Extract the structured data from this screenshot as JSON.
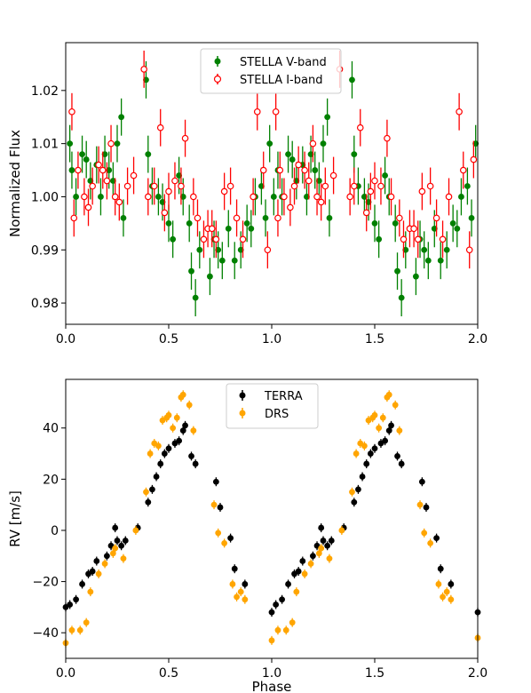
{
  "chart_data": [
    {
      "type": "scatter",
      "xlabel": "",
      "ylabel": "Normalized Flux",
      "xlim": [
        0.0,
        2.0
      ],
      "ylim": [
        0.976,
        1.029
      ],
      "xticks": [
        0.0,
        0.5,
        1.0,
        1.5,
        2.0
      ],
      "xtick_labels": [
        "0.0",
        "0.5",
        "1.0",
        "1.5",
        "2.0"
      ],
      "yticks": [
        0.98,
        0.99,
        1.0,
        1.01,
        1.02
      ],
      "ytick_labels": [
        "0.98",
        "0.99",
        "1.00",
        "1.01",
        "1.02"
      ],
      "legend_position": "upper-center",
      "series": [
        {
          "name": "STELLA V-band",
          "color": "#008000",
          "marker": "filled-circle",
          "error": 0.0035,
          "x": [
            0.02,
            0.03,
            0.05,
            0.08,
            0.1,
            0.12,
            0.15,
            0.17,
            0.19,
            0.21,
            0.23,
            0.25,
            0.27,
            0.28,
            0.39,
            0.4,
            0.42,
            0.45,
            0.47,
            0.5,
            0.52,
            0.55,
            0.57,
            0.6,
            0.61,
            0.63,
            0.65,
            0.7,
            0.72,
            0.74,
            0.76,
            0.79,
            0.82,
            0.85,
            0.88,
            0.9,
            0.92,
            0.95,
            0.97,
            0.99,
            1.01,
            1.03,
            1.05,
            1.08,
            1.1,
            1.12,
            1.15,
            1.17,
            1.19,
            1.21,
            1.23,
            1.25,
            1.27,
            1.28,
            1.39,
            1.4,
            1.42,
            1.45,
            1.47,
            1.5,
            1.52,
            1.55,
            1.57,
            1.6,
            1.61,
            1.63,
            1.65,
            1.7,
            1.72,
            1.74,
            1.76,
            1.79,
            1.82,
            1.85,
            1.88,
            1.9,
            1.92,
            1.95,
            1.97,
            1.99
          ],
          "y": [
            1.01,
            1.005,
            1.0,
            1.008,
            1.007,
            1.003,
            1.006,
            1.0,
            1.008,
            1.005,
            1.003,
            1.01,
            1.015,
            0.996,
            1.022,
            1.008,
            1.002,
            1.0,
            0.999,
            0.995,
            0.992,
            1.004,
            1.0,
            0.995,
            0.986,
            0.981,
            0.99,
            0.985,
            0.992,
            0.99,
            0.988,
            0.994,
            0.988,
            0.99,
            0.995,
            0.994,
            1.0,
            1.002,
            0.996,
            1.01,
            1.0,
            1.005,
            1.0,
            1.008,
            1.007,
            1.003,
            1.006,
            1.0,
            1.008,
            1.005,
            1.003,
            1.01,
            1.015,
            0.996,
            1.022,
            1.008,
            1.002,
            1.0,
            0.999,
            0.995,
            0.992,
            1.004,
            1.0,
            0.995,
            0.986,
            0.981,
            0.99,
            0.985,
            0.992,
            0.99,
            0.988,
            0.994,
            0.988,
            0.99,
            0.995,
            0.994,
            1.0,
            1.002,
            0.996,
            1.01
          ]
        },
        {
          "name": "STELLA I-band",
          "color": "#ff0000",
          "marker": "open-circle",
          "error": 0.0035,
          "x": [
            0.03,
            0.04,
            0.06,
            0.09,
            0.11,
            0.13,
            0.16,
            0.18,
            0.2,
            0.22,
            0.24,
            0.26,
            0.3,
            0.33,
            0.38,
            0.4,
            0.43,
            0.46,
            0.48,
            0.5,
            0.53,
            0.56,
            0.58,
            0.62,
            0.64,
            0.67,
            0.69,
            0.71,
            0.73,
            0.77,
            0.8,
            0.83,
            0.86,
            0.91,
            0.93,
            0.96,
            0.98,
            1.02,
            1.03,
            1.04,
            1.06,
            1.09,
            1.11,
            1.13,
            1.16,
            1.18,
            1.2,
            1.22,
            1.24,
            1.26,
            1.3,
            1.33,
            1.38,
            1.4,
            1.43,
            1.46,
            1.48,
            1.5,
            1.53,
            1.56,
            1.58,
            1.62,
            1.64,
            1.67,
            1.69,
            1.71,
            1.73,
            1.77,
            1.8,
            1.83,
            1.86,
            1.91,
            1.93,
            1.96,
            1.98
          ],
          "y": [
            1.016,
            0.996,
            1.005,
            1.0,
            0.998,
            1.002,
            1.006,
            1.005,
            1.003,
            1.01,
            1.0,
            0.999,
            1.002,
            1.004,
            1.024,
            1.0,
            1.002,
            1.013,
            0.997,
            1.001,
            1.003,
            1.002,
            1.011,
            1.0,
            0.996,
            0.992,
            0.994,
            0.994,
            0.992,
            1.001,
            1.002,
            0.996,
            0.992,
            1.0,
            1.016,
            1.005,
            0.99,
            1.016,
            0.996,
            1.005,
            1.0,
            0.998,
            1.002,
            1.006,
            1.005,
            1.003,
            1.01,
            1.0,
            0.999,
            1.002,
            1.004,
            1.024,
            1.0,
            1.002,
            1.013,
            0.997,
            1.001,
            1.003,
            1.002,
            1.011,
            1.0,
            0.996,
            0.992,
            0.994,
            0.994,
            0.992,
            1.001,
            1.002,
            0.996,
            0.992,
            1.0,
            1.016,
            1.005,
            0.99,
            1.007
          ]
        }
      ]
    },
    {
      "type": "scatter",
      "xlabel": "Phase",
      "ylabel": "RV [m/s]",
      "xlim": [
        0.0,
        2.0
      ],
      "ylim": [
        -50,
        59
      ],
      "xticks": [
        0.0,
        0.5,
        1.0,
        1.5,
        2.0
      ],
      "xtick_labels": [
        "0.0",
        "0.5",
        "1.0",
        "1.5",
        "2.0"
      ],
      "yticks": [
        -40,
        -20,
        0,
        20,
        40
      ],
      "ytick_labels": [
        "−40",
        "−20",
        "0",
        "20",
        "40"
      ],
      "legend_position": "upper-center",
      "series": [
        {
          "name": "TERRA",
          "color": "#000000",
          "marker": "filled-circle",
          "x": [
            0.0,
            0.02,
            0.05,
            0.08,
            0.11,
            0.13,
            0.15,
            0.2,
            0.22,
            0.24,
            0.25,
            0.27,
            0.29,
            0.35,
            0.4,
            0.42,
            0.44,
            0.46,
            0.48,
            0.5,
            0.53,
            0.55,
            0.57,
            0.58,
            0.61,
            0.63,
            0.73,
            0.75,
            0.8,
            0.82,
            0.87,
            1.0,
            1.02,
            1.05,
            1.08,
            1.11,
            1.13,
            1.15,
            1.2,
            1.22,
            1.24,
            1.25,
            1.27,
            1.29,
            1.35,
            1.4,
            1.42,
            1.44,
            1.46,
            1.48,
            1.5,
            1.53,
            1.55,
            1.57,
            1.58,
            1.61,
            1.63,
            1.73,
            1.75,
            1.8,
            1.82,
            1.87,
            2.0
          ],
          "y": [
            -30,
            -29,
            -27,
            -21,
            -17,
            -16,
            -12,
            -10,
            -6,
            1,
            -4,
            -6,
            -4,
            1,
            11,
            16,
            21,
            26,
            30,
            32,
            34,
            35,
            39,
            41,
            29,
            26,
            19,
            9,
            -3,
            -15,
            -21,
            -32,
            -29,
            -27,
            -21,
            -17,
            -16,
            -12,
            -10,
            -6,
            1,
            -4,
            -6,
            -4,
            1,
            11,
            16,
            21,
            26,
            30,
            32,
            34,
            35,
            39,
            41,
            29,
            26,
            19,
            9,
            -3,
            -15,
            -21,
            -32
          ]
        },
        {
          "name": "DRS",
          "color": "#ffa500",
          "marker": "filled-circle",
          "x": [
            0.0,
            0.03,
            0.07,
            0.1,
            0.12,
            0.16,
            0.19,
            0.23,
            0.24,
            0.28,
            0.34,
            0.39,
            0.41,
            0.43,
            0.45,
            0.47,
            0.49,
            0.5,
            0.52,
            0.54,
            0.56,
            0.57,
            0.6,
            0.62,
            0.72,
            0.74,
            0.77,
            0.81,
            0.83,
            0.85,
            0.87,
            1.0,
            1.03,
            1.07,
            1.1,
            1.12,
            1.16,
            1.19,
            1.23,
            1.24,
            1.28,
            1.34,
            1.39,
            1.41,
            1.43,
            1.45,
            1.47,
            1.49,
            1.5,
            1.52,
            1.54,
            1.56,
            1.57,
            1.6,
            1.62,
            1.72,
            1.74,
            1.77,
            1.81,
            1.83,
            1.85,
            1.87,
            2.0
          ],
          "y": [
            -44,
            -39,
            -39,
            -36,
            -24,
            -17,
            -13,
            -9,
            -7,
            -11,
            0,
            15,
            30,
            34,
            33,
            43,
            44,
            45,
            40,
            44,
            52,
            53,
            49,
            39,
            10,
            -1,
            -5,
            -21,
            -26,
            -24,
            -27,
            -43,
            -39,
            -39,
            -36,
            -24,
            -17,
            -13,
            -9,
            -7,
            -11,
            0,
            15,
            30,
            34,
            33,
            43,
            44,
            45,
            40,
            44,
            52,
            53,
            49,
            39,
            10,
            -1,
            -5,
            -21,
            -26,
            -24,
            -27,
            -42
          ]
        }
      ]
    }
  ]
}
